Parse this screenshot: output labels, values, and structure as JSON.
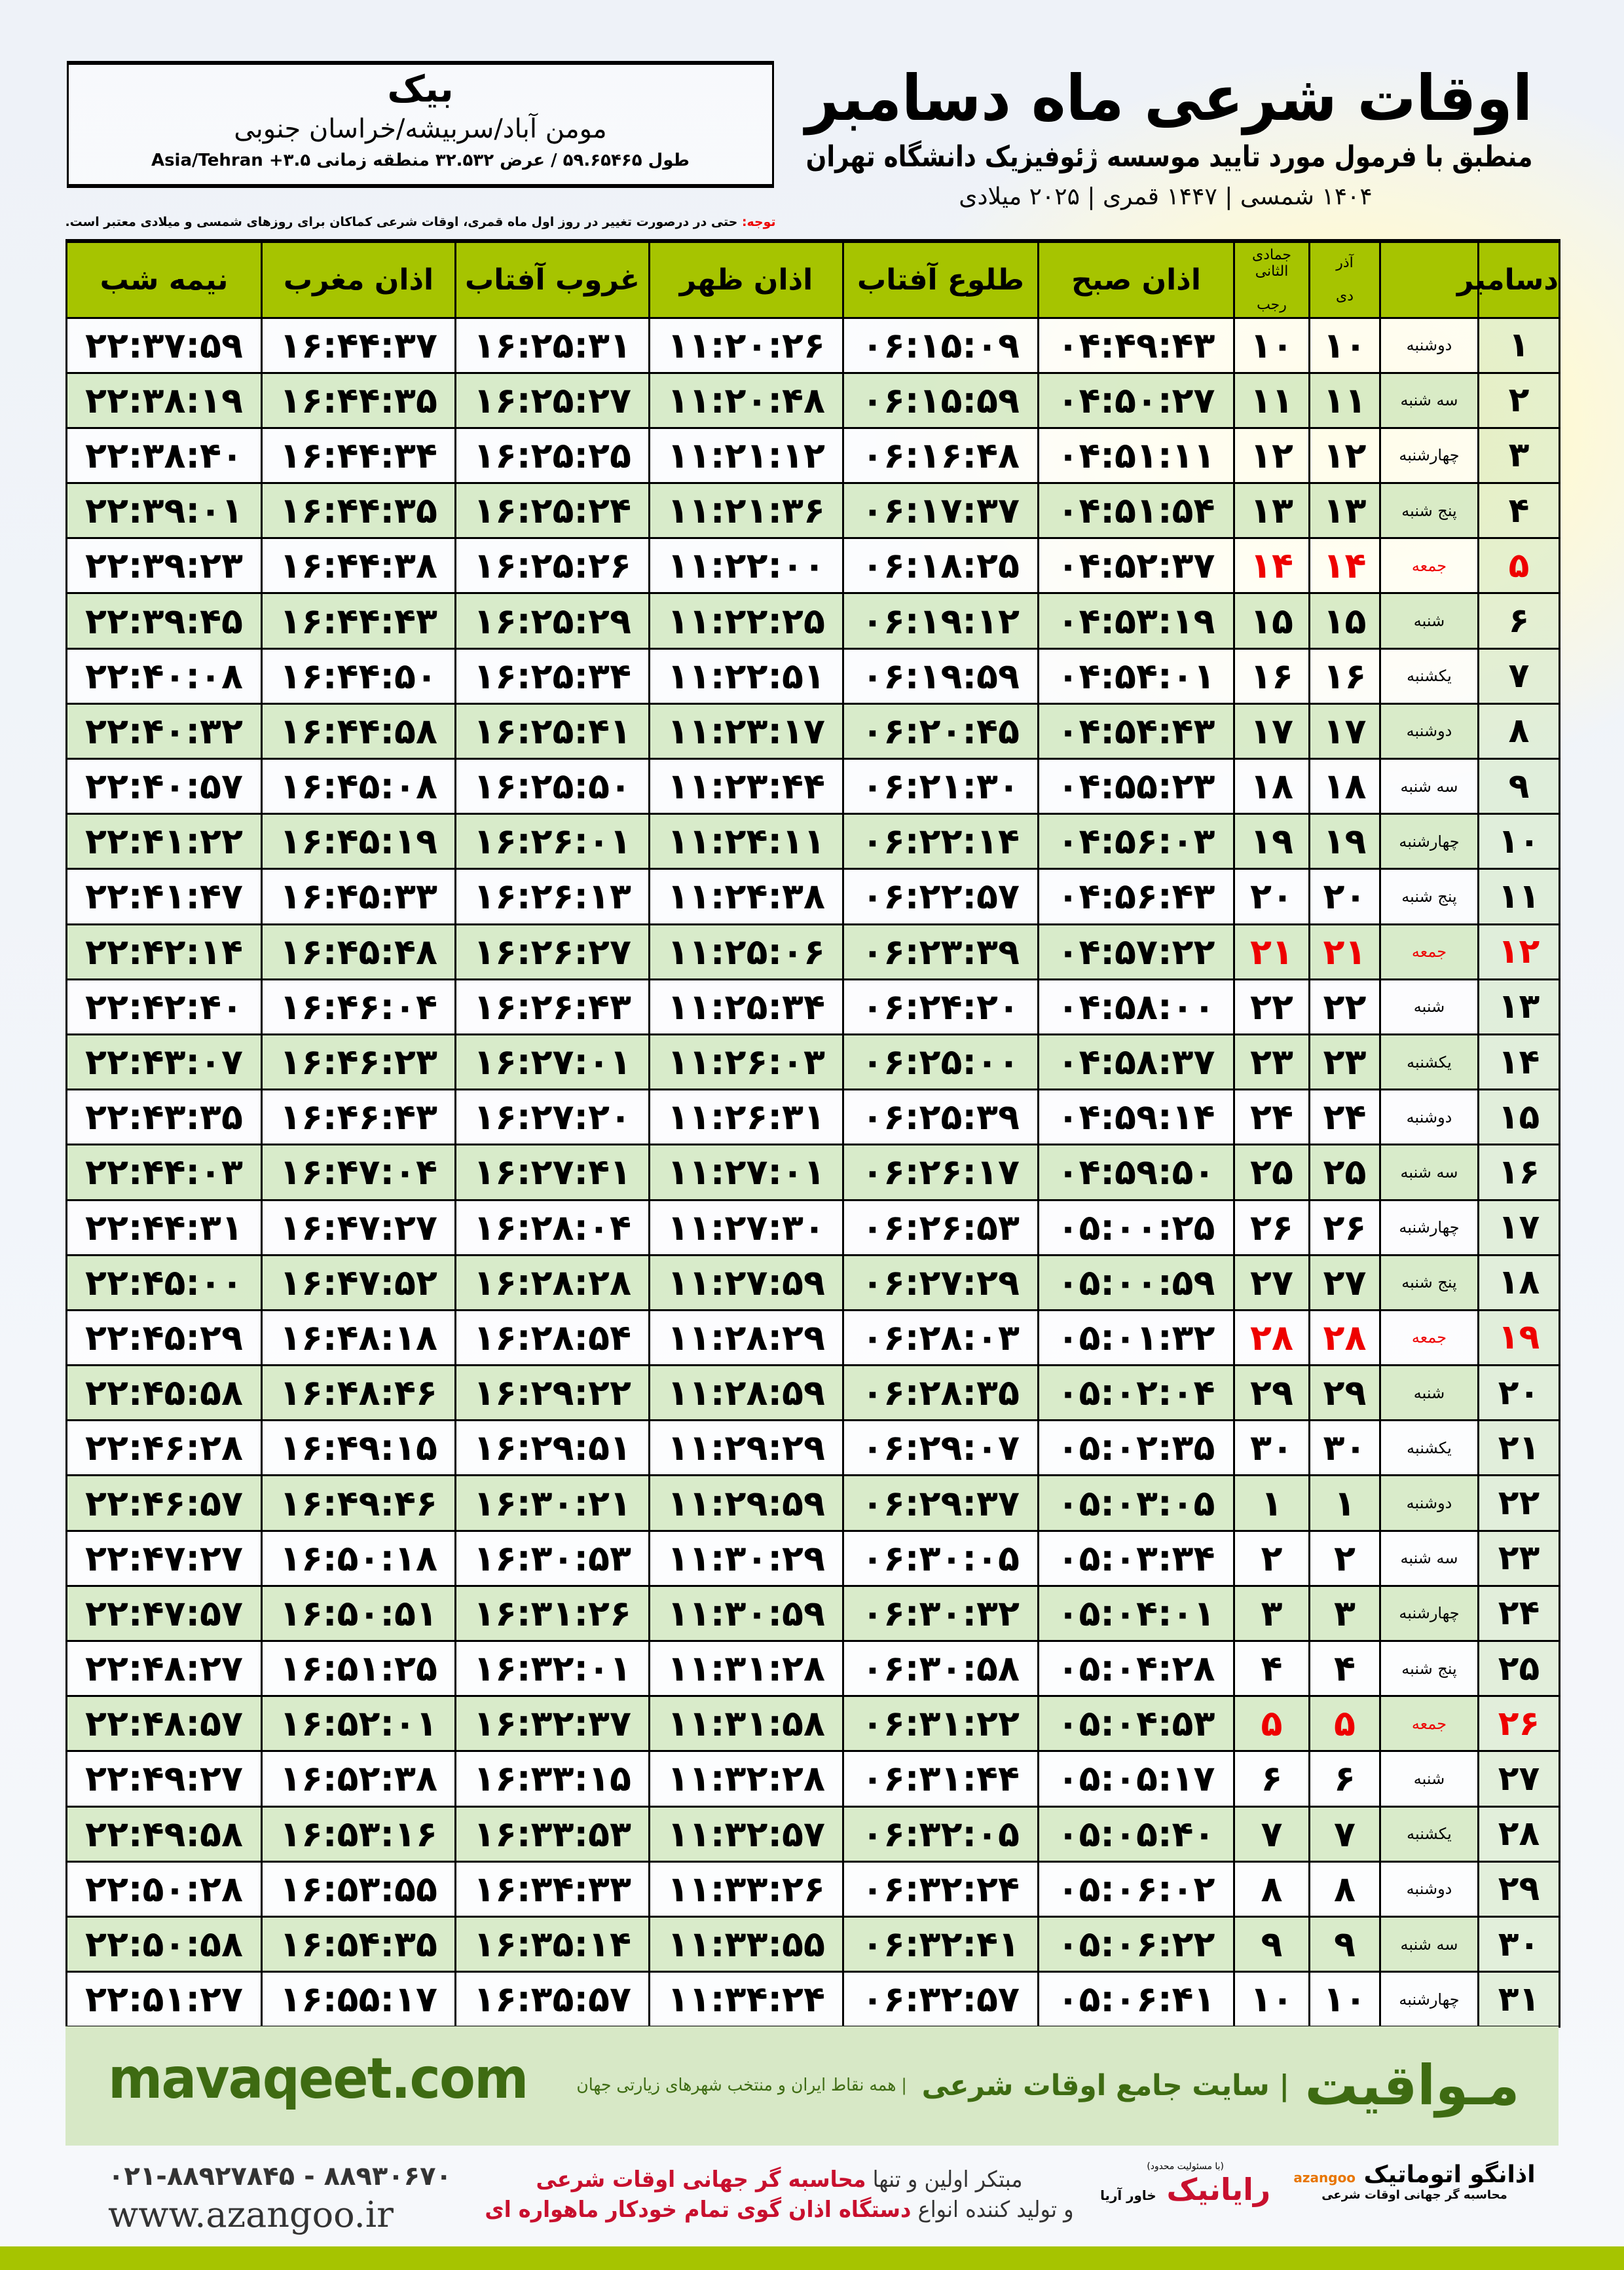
{
  "location": {
    "city": "بیک",
    "region": "مومن آباد/سربیشه/خراسان جنوبی",
    "coords": "طول ۵۹.۶۵۴۶۵ / عرض ۳۲.۵۳۲ منطقه زمانی ۳.۵+ Asia/Tehran"
  },
  "header": {
    "title": "اوقات شرعی ماه دسامبر",
    "subtitle": "منطبق با فرمول مورد تایید موسسه ژئوفیزیک دانشگاه تهران",
    "dates": "۱۴۰۴ شمسی | ۱۴۴۷ قمری | ۲۰۲۵ میلادی"
  },
  "note": {
    "label": "توجه:",
    "text": " حتی در درصورت تغییر در روز اول ماه قمری، اوقات شرعی کماکان برای روزهای شمسی و میلادی معتبر است."
  },
  "columns": {
    "day": "دسامبر",
    "dey_top": "آذر",
    "dey": "دی",
    "rajab_top": "جمادی الثانی",
    "rajab": "رجب",
    "sobh": "اذان صبح",
    "tolu": "طلوع آفتاب",
    "zohr": "اذان ظهر",
    "ghorub": "غروب آفتاب",
    "maghreb": "اذان مغرب",
    "nime": "نیمه شب"
  },
  "colors": {
    "header": "#a6c400",
    "row_alt": "#d6e9c6",
    "friday": "#e00000",
    "brand": "#3e6b12"
  },
  "rows": [
    [
      "۱",
      "دوشنبه",
      "۱۰",
      "۱۰",
      "۰۴:۴۹:۴۳",
      "۰۶:۱۵:۰۹",
      "۱۱:۲۰:۲۶",
      "۱۶:۲۵:۳۱",
      "۱۶:۴۴:۳۷",
      "۲۲:۳۷:۵۹"
    ],
    [
      "۲",
      "سه شنبه",
      "۱۱",
      "۱۱",
      "۰۴:۵۰:۲۷",
      "۰۶:۱۵:۵۹",
      "۱۱:۲۰:۴۸",
      "۱۶:۲۵:۲۷",
      "۱۶:۴۴:۳۵",
      "۲۲:۳۸:۱۹"
    ],
    [
      "۳",
      "چهارشنبه",
      "۱۲",
      "۱۲",
      "۰۴:۵۱:۱۱",
      "۰۶:۱۶:۴۸",
      "۱۱:۲۱:۱۲",
      "۱۶:۲۵:۲۵",
      "۱۶:۴۴:۳۴",
      "۲۲:۳۸:۴۰"
    ],
    [
      "۴",
      "پنج شنبه",
      "۱۳",
      "۱۳",
      "۰۴:۵۱:۵۴",
      "۰۶:۱۷:۳۷",
      "۱۱:۲۱:۳۶",
      "۱۶:۲۵:۲۴",
      "۱۶:۴۴:۳۵",
      "۲۲:۳۹:۰۱"
    ],
    [
      "۵",
      "جمعه",
      "۱۴",
      "۱۴",
      "۰۴:۵۲:۳۷",
      "۰۶:۱۸:۲۵",
      "۱۱:۲۲:۰۰",
      "۱۶:۲۵:۲۶",
      "۱۶:۴۴:۳۸",
      "۲۲:۳۹:۲۳"
    ],
    [
      "۶",
      "شنبه",
      "۱۵",
      "۱۵",
      "۰۴:۵۳:۱۹",
      "۰۶:۱۹:۱۲",
      "۱۱:۲۲:۲۵",
      "۱۶:۲۵:۲۹",
      "۱۶:۴۴:۴۳",
      "۲۲:۳۹:۴۵"
    ],
    [
      "۷",
      "یکشنبه",
      "۱۶",
      "۱۶",
      "۰۴:۵۴:۰۱",
      "۰۶:۱۹:۵۹",
      "۱۱:۲۲:۵۱",
      "۱۶:۲۵:۳۴",
      "۱۶:۴۴:۵۰",
      "۲۲:۴۰:۰۸"
    ],
    [
      "۸",
      "دوشنبه",
      "۱۷",
      "۱۷",
      "۰۴:۵۴:۴۳",
      "۰۶:۲۰:۴۵",
      "۱۱:۲۳:۱۷",
      "۱۶:۲۵:۴۱",
      "۱۶:۴۴:۵۸",
      "۲۲:۴۰:۳۲"
    ],
    [
      "۹",
      "سه شنبه",
      "۱۸",
      "۱۸",
      "۰۴:۵۵:۲۳",
      "۰۶:۲۱:۳۰",
      "۱۱:۲۳:۴۴",
      "۱۶:۲۵:۵۰",
      "۱۶:۴۵:۰۸",
      "۲۲:۴۰:۵۷"
    ],
    [
      "۱۰",
      "چهارشنبه",
      "۱۹",
      "۱۹",
      "۰۴:۵۶:۰۳",
      "۰۶:۲۲:۱۴",
      "۱۱:۲۴:۱۱",
      "۱۶:۲۶:۰۱",
      "۱۶:۴۵:۱۹",
      "۲۲:۴۱:۲۲"
    ],
    [
      "۱۱",
      "پنج شنبه",
      "۲۰",
      "۲۰",
      "۰۴:۵۶:۴۳",
      "۰۶:۲۲:۵۷",
      "۱۱:۲۴:۳۸",
      "۱۶:۲۶:۱۳",
      "۱۶:۴۵:۳۳",
      "۲۲:۴۱:۴۷"
    ],
    [
      "۱۲",
      "جمعه",
      "۲۱",
      "۲۱",
      "۰۴:۵۷:۲۲",
      "۰۶:۲۳:۳۹",
      "۱۱:۲۵:۰۶",
      "۱۶:۲۶:۲۷",
      "۱۶:۴۵:۴۸",
      "۲۲:۴۲:۱۴"
    ],
    [
      "۱۳",
      "شنبه",
      "۲۲",
      "۲۲",
      "۰۴:۵۸:۰۰",
      "۰۶:۲۴:۲۰",
      "۱۱:۲۵:۳۴",
      "۱۶:۲۶:۴۳",
      "۱۶:۴۶:۰۴",
      "۲۲:۴۲:۴۰"
    ],
    [
      "۱۴",
      "یکشنبه",
      "۲۳",
      "۲۳",
      "۰۴:۵۸:۳۷",
      "۰۶:۲۵:۰۰",
      "۱۱:۲۶:۰۳",
      "۱۶:۲۷:۰۱",
      "۱۶:۴۶:۲۳",
      "۲۲:۴۳:۰۷"
    ],
    [
      "۱۵",
      "دوشنبه",
      "۲۴",
      "۲۴",
      "۰۴:۵۹:۱۴",
      "۰۶:۲۵:۳۹",
      "۱۱:۲۶:۳۱",
      "۱۶:۲۷:۲۰",
      "۱۶:۴۶:۴۳",
      "۲۲:۴۳:۳۵"
    ],
    [
      "۱۶",
      "سه شنبه",
      "۲۵",
      "۲۵",
      "۰۴:۵۹:۵۰",
      "۰۶:۲۶:۱۷",
      "۱۱:۲۷:۰۱",
      "۱۶:۲۷:۴۱",
      "۱۶:۴۷:۰۴",
      "۲۲:۴۴:۰۳"
    ],
    [
      "۱۷",
      "چهارشنبه",
      "۲۶",
      "۲۶",
      "۰۵:۰۰:۲۵",
      "۰۶:۲۶:۵۳",
      "۱۱:۲۷:۳۰",
      "۱۶:۲۸:۰۴",
      "۱۶:۴۷:۲۷",
      "۲۲:۴۴:۳۱"
    ],
    [
      "۱۸",
      "پنج شنبه",
      "۲۷",
      "۲۷",
      "۰۵:۰۰:۵۹",
      "۰۶:۲۷:۲۹",
      "۱۱:۲۷:۵۹",
      "۱۶:۲۸:۲۸",
      "۱۶:۴۷:۵۲",
      "۲۲:۴۵:۰۰"
    ],
    [
      "۱۹",
      "جمعه",
      "۲۸",
      "۲۸",
      "۰۵:۰۱:۳۲",
      "۰۶:۲۸:۰۳",
      "۱۱:۲۸:۲۹",
      "۱۶:۲۸:۵۴",
      "۱۶:۴۸:۱۸",
      "۲۲:۴۵:۲۹"
    ],
    [
      "۲۰",
      "شنبه",
      "۲۹",
      "۲۹",
      "۰۵:۰۲:۰۴",
      "۰۶:۲۸:۳۵",
      "۱۱:۲۸:۵۹",
      "۱۶:۲۹:۲۲",
      "۱۶:۴۸:۴۶",
      "۲۲:۴۵:۵۸"
    ],
    [
      "۲۱",
      "یکشنبه",
      "۳۰",
      "۳۰",
      "۰۵:۰۲:۳۵",
      "۰۶:۲۹:۰۷",
      "۱۱:۲۹:۲۹",
      "۱۶:۲۹:۵۱",
      "۱۶:۴۹:۱۵",
      "۲۲:۴۶:۲۸"
    ],
    [
      "۲۲",
      "دوشنبه",
      "۱",
      "۱",
      "۰۵:۰۳:۰۵",
      "۰۶:۲۹:۳۷",
      "۱۱:۲۹:۵۹",
      "۱۶:۳۰:۲۱",
      "۱۶:۴۹:۴۶",
      "۲۲:۴۶:۵۷"
    ],
    [
      "۲۳",
      "سه شنبه",
      "۲",
      "۲",
      "۰۵:۰۳:۳۴",
      "۰۶:۳۰:۰۵",
      "۱۱:۳۰:۲۹",
      "۱۶:۳۰:۵۳",
      "۱۶:۵۰:۱۸",
      "۲۲:۴۷:۲۷"
    ],
    [
      "۲۴",
      "چهارشنبه",
      "۳",
      "۳",
      "۰۵:۰۴:۰۱",
      "۰۶:۳۰:۳۲",
      "۱۱:۳۰:۵۹",
      "۱۶:۳۱:۲۶",
      "۱۶:۵۰:۵۱",
      "۲۲:۴۷:۵۷"
    ],
    [
      "۲۵",
      "پنج شنبه",
      "۴",
      "۴",
      "۰۵:۰۴:۲۸",
      "۰۶:۳۰:۵۸",
      "۱۱:۳۱:۲۸",
      "۱۶:۳۲:۰۱",
      "۱۶:۵۱:۲۵",
      "۲۲:۴۸:۲۷"
    ],
    [
      "۲۶",
      "جمعه",
      "۵",
      "۵",
      "۰۵:۰۴:۵۳",
      "۰۶:۳۱:۲۲",
      "۱۱:۳۱:۵۸",
      "۱۶:۳۲:۳۷",
      "۱۶:۵۲:۰۱",
      "۲۲:۴۸:۵۷"
    ],
    [
      "۲۷",
      "شنبه",
      "۶",
      "۶",
      "۰۵:۰۵:۱۷",
      "۰۶:۳۱:۴۴",
      "۱۱:۳۲:۲۸",
      "۱۶:۳۳:۱۵",
      "۱۶:۵۲:۳۸",
      "۲۲:۴۹:۲۷"
    ],
    [
      "۲۸",
      "یکشنبه",
      "۷",
      "۷",
      "۰۵:۰۵:۴۰",
      "۰۶:۳۲:۰۵",
      "۱۱:۳۲:۵۷",
      "۱۶:۳۳:۵۳",
      "۱۶:۵۳:۱۶",
      "۲۲:۴۹:۵۸"
    ],
    [
      "۲۹",
      "دوشنبه",
      "۸",
      "۸",
      "۰۵:۰۶:۰۲",
      "۰۶:۳۲:۲۴",
      "۱۱:۳۳:۲۶",
      "۱۶:۳۴:۳۳",
      "۱۶:۵۳:۵۵",
      "۲۲:۵۰:۲۸"
    ],
    [
      "۳۰",
      "سه شنبه",
      "۹",
      "۹",
      "۰۵:۰۶:۲۲",
      "۰۶:۳۲:۴۱",
      "۱۱:۳۳:۵۵",
      "۱۶:۳۵:۱۴",
      "۱۶:۵۴:۳۵",
      "۲۲:۵۰:۵۸"
    ],
    [
      "۳۱",
      "چهارشنبه",
      "۱۰",
      "۱۰",
      "۰۵:۰۶:۴۱",
      "۰۶:۳۲:۵۷",
      "۱۱:۳۴:۲۴",
      "۱۶:۳۵:۵۷",
      "۱۶:۵۵:۱۷",
      "۲۲:۵۱:۲۷"
    ]
  ],
  "banner": {
    "site": "mavaqeet.com",
    "brand": "مـواقیت",
    "tagline": "| سایت جامع اوقات شرعی",
    "sub": "| همه نقاط ایران و منتخب شهرهای زیارتی جهان"
  },
  "footer": {
    "phone": "۰۲۱-۸۸۹۲۷۸۴۵ - ۸۸۹۳۰۶۷۰",
    "web": "www.azangoo.ir",
    "promo1_a": "مبتکر اولین و تنها ",
    "promo1_b": "محاسبه گر جهانی اوقات شرعی",
    "promo2_a": "و تولید کننده انواع ",
    "promo2_b": "دستگاه اذان گوی تمام خودکار ماهواره ای",
    "logo_rayanik": "رایانیک",
    "logo_rayanik_sub": "خاور آریا",
    "logo_rayanik_note": "(با مسئولیت محدود)",
    "logo_azangoo": "اذانگو اتوماتیک",
    "logo_azangoo_sub": "محاسبه گر جهانی اوقات شرعی",
    "logo_azangoo_en": "azangoo"
  }
}
